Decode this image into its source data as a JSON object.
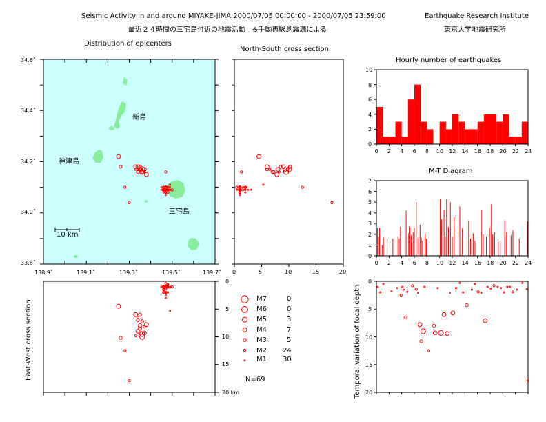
{
  "header": {
    "title_en": "Seismic Activity in and around MIYAKE-JIMA 2000/07/05 00:00:00 - 2000/07/05 23:59:00",
    "institute_en": "Earthquake Research Institute",
    "title_jp": "最近２４時間の三宅島付近の地震活動　※手動再験測震源による",
    "institute_jp": "東京大学地震研究所"
  },
  "colors": {
    "sea": "#ccffff",
    "land": "#88ee99",
    "quake": "#ff0000",
    "axis": "#000000"
  },
  "map": {
    "title": "Distribution of epicenters",
    "island_labels": [
      "新島",
      "神津島",
      "三宅島"
    ],
    "scale_label": "10 km",
    "lat_ticks": [
      "34.6˚",
      "34.4˚",
      "34.2˚",
      "34.0˚",
      "33.8˚"
    ],
    "lon_ticks": [
      "138.9˚",
      "139.1˚",
      "139.3˚",
      "139.5˚",
      "139.7˚"
    ],
    "lon_range": [
      138.9,
      139.7
    ],
    "lat_range": [
      33.8,
      34.6
    ]
  },
  "ns_section": {
    "title": "North-South cross section",
    "depth_ticks": [
      "0",
      "5",
      "10",
      "15",
      "20"
    ],
    "depth_range": [
      0,
      20
    ]
  },
  "ew_section": {
    "ylabel": "East-West cross section",
    "depth_ticks": [
      "0",
      "5",
      "10",
      "15",
      "20 km"
    ]
  },
  "legend": {
    "rows": [
      {
        "label": "M7",
        "count": "0"
      },
      {
        "label": "M6",
        "count": "0"
      },
      {
        "label": "M5",
        "count": "3"
      },
      {
        "label": "M4",
        "count": "7"
      },
      {
        "label": "M3",
        "count": "5"
      },
      {
        "label": "M2",
        "count": "24"
      },
      {
        "label": "M1",
        "count": "30"
      }
    ],
    "total": "N=69"
  },
  "chart_data": [
    {
      "type": "bar",
      "title": "Hourly number of earthquakes",
      "ylim": [
        0,
        10
      ],
      "y_ticks": [
        "0",
        "2",
        "4",
        "6",
        "8",
        "10"
      ],
      "x_ticks": [
        "0",
        "2",
        "4",
        "6",
        "8",
        "10",
        "12",
        "14",
        "16",
        "18",
        "20",
        "22",
        "24"
      ],
      "xlim": [
        0,
        24
      ],
      "categories": [
        0,
        1,
        2,
        3,
        4,
        5,
        6,
        7,
        8,
        9,
        10,
        11,
        12,
        13,
        14,
        15,
        16,
        17,
        18,
        19,
        20,
        21,
        22,
        23
      ],
      "values": [
        5,
        1,
        1,
        3,
        1,
        6,
        8,
        3,
        2,
        0,
        3,
        2,
        4,
        3,
        2,
        2,
        3,
        4,
        4,
        3,
        4,
        1,
        1,
        3
      ]
    },
    {
      "type": "bar",
      "title": "M-T Diagram",
      "ylim": [
        0,
        7
      ],
      "y_ticks": [
        "0",
        "1",
        "2",
        "3",
        "4",
        "5",
        "6",
        "7"
      ],
      "x_ticks": [
        "0",
        "2",
        "4",
        "6",
        "8",
        "10",
        "12",
        "14",
        "16",
        "18",
        "20",
        "22",
        "24"
      ],
      "xlim": [
        0,
        24
      ],
      "x": [
        0.15,
        0.3,
        0.5,
        0.9,
        1.1,
        1.7,
        2.6,
        3.4,
        3.6,
        3.8,
        4.7,
        5.1,
        5.3,
        5.5,
        5.6,
        5.8,
        6.0,
        6.3,
        6.6,
        6.9,
        7.1,
        7.3,
        7.7,
        7.9,
        10.1,
        10.3,
        10.7,
        10.9,
        11.1,
        11.4,
        11.7,
        12.0,
        12.3,
        12.6,
        13.2,
        13.6,
        14.6,
        14.9,
        15.3,
        15.6,
        16.6,
        16.9,
        17.4,
        17.9,
        18.2,
        18.4,
        18.7,
        19.3,
        19.6,
        20.3,
        20.6,
        21.3,
        21.6,
        22.6,
        23.9
      ],
      "y": [
        2.6,
        1.8,
        2.6,
        1.0,
        1.7,
        1.6,
        1.6,
        1.8,
        1.6,
        2.7,
        4.2,
        2.1,
        2.7,
        1.9,
        1.6,
        2.2,
        2.6,
        5.0,
        1.7,
        2.9,
        1.7,
        1.4,
        2.1,
        1.6,
        5.3,
        3.4,
        4.3,
        1.8,
        5.3,
        2.7,
        5.0,
        1.8,
        3.6,
        1.6,
        4.6,
        2.6,
        3.3,
        1.6,
        2.1,
        1.4,
        4.3,
        2.0,
        1.8,
        2.6,
        4.8,
        2.0,
        2.2,
        1.3,
        1.4,
        3.3,
        2.2,
        1.9,
        2.4,
        1.6,
        3.2
      ]
    },
    {
      "type": "scatter",
      "title": "",
      "ylabel": "Temporal variation of focal depth",
      "y_ticks": [
        "0",
        "5",
        "10",
        "15",
        "20"
      ],
      "ylim": [
        0,
        20
      ],
      "xlim": [
        0,
        24
      ],
      "x": [
        0.2,
        0.6,
        1.1,
        2.4,
        3.3,
        3.9,
        4.1,
        4.3,
        4.6,
        4.9,
        5.7,
        6.3,
        6.6,
        6.9,
        7.1,
        7.4,
        7.6,
        8.3,
        9.1,
        9.3,
        9.7,
        10.2,
        10.7,
        11.2,
        11.6,
        12.1,
        12.6,
        13.2,
        13.7,
        14.3,
        15.1,
        15.6,
        16.1,
        16.6,
        17.2,
        17.6,
        18.1,
        18.6,
        19.2,
        19.7,
        20.2,
        20.7,
        21.1,
        21.6,
        22.3,
        23.1,
        23.8,
        24.0
      ],
      "y": [
        1.0,
        2.0,
        0.5,
        1.8,
        1.2,
        2.5,
        1.0,
        1.5,
        6.5,
        1.9,
        0.8,
        1.4,
        2.1,
        7.8,
        10.8,
        9.0,
        1.0,
        12.5,
        8.0,
        9.3,
        1.2,
        9.3,
        6.0,
        9.4,
        2.1,
        5.7,
        1.2,
        0.3,
        2.0,
        4.3,
        1.5,
        0.5,
        1.9,
        2.1,
        7.1,
        1.0,
        1.3,
        0.8,
        1.0,
        1.2,
        2.0,
        1.0,
        1.0,
        1.9,
        1.5,
        0.3,
        1.4,
        17.9
      ],
      "m": [
        1,
        1,
        1,
        1,
        1,
        2,
        1,
        1,
        3,
        1,
        2,
        2,
        1,
        4,
        3,
        5,
        1,
        2,
        3,
        4,
        1,
        5,
        4,
        4,
        1,
        4,
        1,
        1,
        1,
        3,
        1,
        1,
        2,
        1,
        4,
        1,
        1,
        2,
        1,
        1,
        1,
        1,
        1,
        2,
        1,
        1,
        1,
        2
      ]
    }
  ]
}
